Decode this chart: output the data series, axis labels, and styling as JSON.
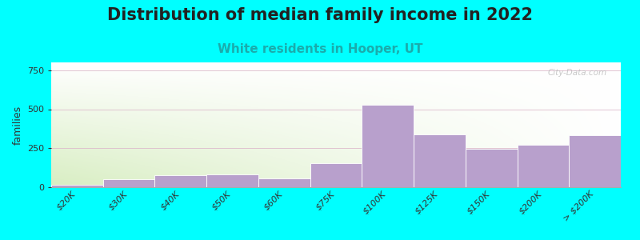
{
  "title": "Distribution of median family income in 2022",
  "subtitle": "White residents in Hooper, UT",
  "ylabel": "families",
  "background_color": "#00FFFF",
  "bar_color": "#b8a0cc",
  "bar_edge_color": "#ffffff",
  "categories": [
    "$20K",
    "$30K",
    "$40K",
    "$50K",
    "$60K",
    "$75K",
    "$100K",
    "$125K",
    "$150K",
    "$200K",
    "> $200K"
  ],
  "values": [
    15,
    50,
    75,
    80,
    55,
    155,
    530,
    340,
    245,
    270,
    335
  ],
  "ylim": [
    0,
    800
  ],
  "yticks": [
    0,
    250,
    500,
    750
  ],
  "title_fontsize": 15,
  "subtitle_fontsize": 11,
  "subtitle_color": "#1aacac",
  "ylabel_fontsize": 9,
  "tick_fontsize": 8,
  "watermark": "City-Data.com",
  "gradient_color_green": [
    0.82,
    0.92,
    0.72
  ],
  "gradient_color_white": [
    1.0,
    1.0,
    1.0
  ]
}
